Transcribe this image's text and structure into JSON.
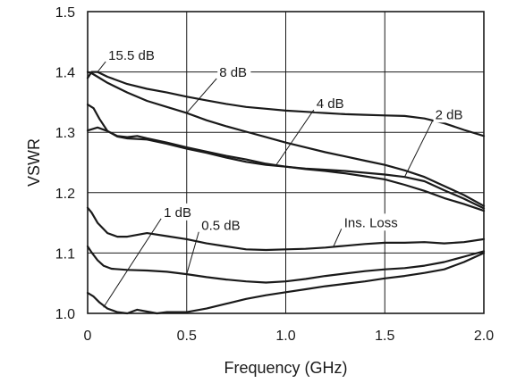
{
  "chart_data": {
    "type": "line",
    "title": "",
    "xlabel": "Frequency (GHz)",
    "ylabel": "VSWR",
    "xlim": [
      0,
      2.0
    ],
    "ylim": [
      1.0,
      1.5
    ],
    "grid": true,
    "x_ticks": [
      {
        "value": 0,
        "label": "0"
      },
      {
        "value": 0.5,
        "label": "0.5"
      },
      {
        "value": 1.0,
        "label": "1.0"
      },
      {
        "value": 1.5,
        "label": "1.5"
      },
      {
        "value": 2.0,
        "label": "2.0"
      }
    ],
    "y_ticks": [
      {
        "value": 1.0,
        "label": "1.0"
      },
      {
        "value": 1.1,
        "label": "1.1"
      },
      {
        "value": 1.2,
        "label": "1.2"
      },
      {
        "value": 1.3,
        "label": "1.3"
      },
      {
        "value": 1.4,
        "label": "1.4"
      },
      {
        "value": 1.5,
        "label": "1.5"
      }
    ],
    "series": [
      {
        "key": "s15_5",
        "x": [
          0,
          0.02,
          0.05,
          0.1,
          0.2,
          0.3,
          0.4,
          0.5,
          0.6,
          0.7,
          0.8,
          0.9,
          1.0,
          1.1,
          1.2,
          1.3,
          1.4,
          1.5,
          1.6,
          1.7,
          1.8,
          1.9,
          2.0
        ],
        "y": [
          1.39,
          1.4,
          1.4,
          1.392,
          1.38,
          1.372,
          1.366,
          1.359,
          1.353,
          1.347,
          1.342,
          1.339,
          1.336,
          1.334,
          1.332,
          1.33,
          1.329,
          1.328,
          1.327,
          1.323,
          1.315,
          1.304,
          1.294
        ]
      },
      {
        "key": "s8",
        "x": [
          0,
          0.02,
          0.05,
          0.1,
          0.2,
          0.3,
          0.4,
          0.5,
          0.6,
          0.7,
          0.8,
          0.9,
          1.0,
          1.1,
          1.2,
          1.3,
          1.4,
          1.5,
          1.6,
          1.7,
          1.8,
          1.9,
          2.0
        ],
        "y": [
          1.4,
          1.398,
          1.392,
          1.382,
          1.366,
          1.352,
          1.342,
          1.332,
          1.32,
          1.31,
          1.301,
          1.292,
          1.283,
          1.275,
          1.267,
          1.26,
          1.253,
          1.246,
          1.237,
          1.226,
          1.211,
          1.196,
          1.178
        ]
      },
      {
        "key": "s4",
        "x": [
          0,
          0.03,
          0.06,
          0.1,
          0.15,
          0.2,
          0.3,
          0.4,
          0.5,
          0.6,
          0.7,
          0.8,
          0.9,
          1.0,
          1.1,
          1.2,
          1.3,
          1.4,
          1.5,
          1.6,
          1.7,
          1.8,
          1.9,
          2.0
        ],
        "y": [
          1.346,
          1.34,
          1.322,
          1.302,
          1.293,
          1.29,
          1.288,
          1.281,
          1.273,
          1.266,
          1.258,
          1.251,
          1.246,
          1.243,
          1.239,
          1.236,
          1.232,
          1.227,
          1.222,
          1.213,
          1.203,
          1.191,
          1.181,
          1.17
        ]
      },
      {
        "key": "s2",
        "x": [
          0,
          0.05,
          0.1,
          0.15,
          0.2,
          0.25,
          0.3,
          0.4,
          0.5,
          0.6,
          0.7,
          0.8,
          0.9,
          1.0,
          1.1,
          1.2,
          1.3,
          1.4,
          1.5,
          1.6,
          1.7,
          1.8,
          1.9,
          2.0
        ],
        "y": [
          1.303,
          1.308,
          1.302,
          1.294,
          1.292,
          1.294,
          1.29,
          1.283,
          1.275,
          1.268,
          1.261,
          1.255,
          1.248,
          1.243,
          1.24,
          1.238,
          1.236,
          1.233,
          1.23,
          1.226,
          1.219,
          1.204,
          1.19,
          1.174
        ]
      },
      {
        "key": "s1",
        "x": [
          0,
          0.02,
          0.05,
          0.1,
          0.15,
          0.2,
          0.3,
          0.4,
          0.5,
          0.6,
          0.7,
          0.8,
          0.9,
          1.0,
          1.1,
          1.2,
          1.3,
          1.4,
          1.5,
          1.6,
          1.7,
          1.8,
          1.9,
          2.0
        ],
        "y": [
          1.175,
          1.167,
          1.15,
          1.133,
          1.127,
          1.127,
          1.133,
          1.128,
          1.123,
          1.116,
          1.111,
          1.106,
          1.105,
          1.106,
          1.107,
          1.109,
          1.112,
          1.115,
          1.117,
          1.117,
          1.118,
          1.116,
          1.118,
          1.123
        ]
      },
      {
        "key": "s0_5",
        "x": [
          0,
          0.02,
          0.05,
          0.08,
          0.12,
          0.2,
          0.3,
          0.4,
          0.5,
          0.6,
          0.7,
          0.8,
          0.9,
          1.0,
          1.1,
          1.2,
          1.3,
          1.4,
          1.5,
          1.6,
          1.7,
          1.8,
          1.9,
          2.0
        ],
        "y": [
          1.111,
          1.101,
          1.088,
          1.079,
          1.074,
          1.072,
          1.071,
          1.069,
          1.065,
          1.06,
          1.056,
          1.053,
          1.051,
          1.053,
          1.057,
          1.062,
          1.066,
          1.07,
          1.073,
          1.075,
          1.079,
          1.085,
          1.094,
          1.103
        ]
      },
      {
        "key": "ins_loss",
        "x": [
          0,
          0.03,
          0.06,
          0.1,
          0.15,
          0.2,
          0.25,
          0.3,
          0.35,
          0.4,
          0.5,
          0.6,
          0.7,
          0.8,
          0.9,
          1.0,
          1.1,
          1.2,
          1.3,
          1.4,
          1.5,
          1.6,
          1.7,
          1.8,
          1.9,
          2.0
        ],
        "y": [
          1.034,
          1.028,
          1.018,
          1.008,
          1.002,
          1.0,
          1.006,
          1.003,
          1.0,
          1.002,
          1.002,
          1.008,
          1.016,
          1.024,
          1.03,
          1.035,
          1.04,
          1.045,
          1.049,
          1.053,
          1.058,
          1.062,
          1.067,
          1.073,
          1.085,
          1.1
        ]
      }
    ],
    "annotations": [
      {
        "text": "15.5 dB",
        "label_x": 0.1,
        "label_y": 1.42,
        "target_x": 0.05,
        "target_y": 1.4
      },
      {
        "text": "8 dB",
        "label_x": 0.66,
        "label_y": 1.392,
        "target_x": 0.5,
        "target_y": 1.332
      },
      {
        "text": "4 dB",
        "label_x": 1.15,
        "label_y": 1.34,
        "target_x": 0.95,
        "target_y": 1.245
      },
      {
        "text": "2 dB",
        "label_x": 1.75,
        "label_y": 1.322,
        "target_x": 1.6,
        "target_y": 1.226
      },
      {
        "text": "1 dB",
        "label_x": 0.38,
        "label_y": 1.16,
        "target_x": 0.08,
        "target_y": 1.01
      },
      {
        "text": "0.5 dB",
        "label_x": 0.57,
        "label_y": 1.138,
        "target_x": 0.5,
        "target_y": 1.065
      },
      {
        "text": "Ins. Loss",
        "label_x": 1.29,
        "label_y": 1.143,
        "target_x": 1.24,
        "target_y": 1.11
      }
    ]
  }
}
